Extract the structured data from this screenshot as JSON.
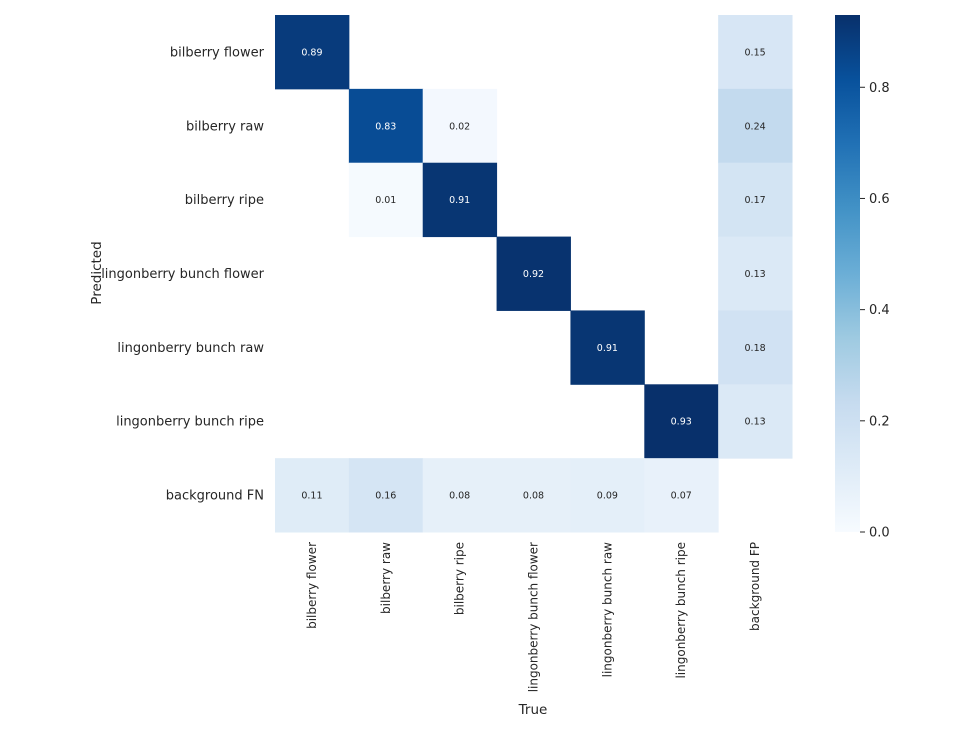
{
  "chart_data": {
    "type": "heatmap",
    "xlabel": "True",
    "ylabel": "Predicted",
    "x_categories": [
      "bilberry flower",
      "bilberry raw",
      "bilberry ripe",
      "lingonberry bunch flower",
      "lingonberry bunch raw",
      "lingonberry bunch ripe",
      "background FP"
    ],
    "y_categories": [
      "bilberry flower",
      "bilberry raw",
      "bilberry ripe",
      "lingonberry bunch flower",
      "lingonberry bunch raw",
      "lingonberry bunch ripe",
      "background FN"
    ],
    "values": [
      [
        0.89,
        null,
        null,
        null,
        null,
        null,
        0.15
      ],
      [
        null,
        0.83,
        0.02,
        null,
        null,
        null,
        0.24
      ],
      [
        null,
        0.01,
        0.91,
        null,
        null,
        null,
        0.17
      ],
      [
        null,
        null,
        null,
        0.92,
        null,
        null,
        0.13
      ],
      [
        null,
        null,
        null,
        null,
        0.91,
        null,
        0.18
      ],
      [
        null,
        null,
        null,
        null,
        null,
        0.93,
        0.13
      ],
      [
        0.11,
        0.16,
        0.08,
        0.08,
        0.09,
        0.07,
        null
      ]
    ],
    "colorscale": "Blues",
    "vmin": 0.0,
    "vmax": 0.93,
    "colorbar_ticks": [
      "0.0",
      "0.2",
      "0.4",
      "0.6",
      "0.8"
    ],
    "grid": false,
    "legend": "colorbar-right"
  }
}
